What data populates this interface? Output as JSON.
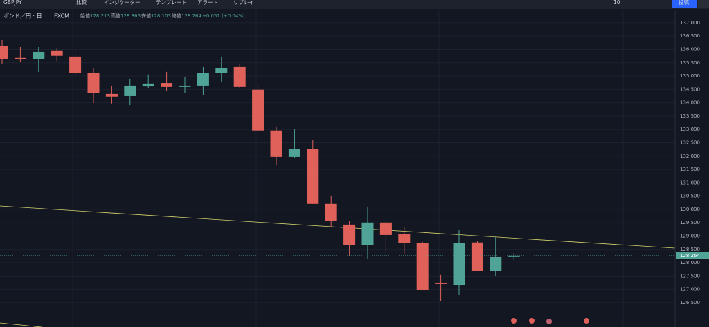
{
  "toolbar": {
    "symbol": "GBPJPY",
    "items": [
      "比較",
      "インジケーター",
      "テンプレート",
      "アラート",
      "リプレイ"
    ],
    "layout_count": "10",
    "publish": "投稿"
  },
  "legend": {
    "name": "ポンド／円 · 日",
    "source": "FXCM",
    "open_label": "始値",
    "high_label": "高値",
    "low_label": "安値",
    "close_label": "終値",
    "change": "+0.051 (+0.04%)"
  },
  "chart_data": {
    "type": "candlestick",
    "up_color": "#4fa397",
    "down_color": "#e0605a",
    "grid": true,
    "open": [
      136.12,
      135.68,
      135.63,
      135.94,
      135.73,
      135.11,
      134.33,
      134.25,
      134.61,
      134.74,
      134.59,
      134.64,
      135.11,
      135.34,
      134.49,
      132.96,
      131.97,
      132.26,
      130.21,
      129.43,
      128.65,
      129.51,
      129.07,
      128.73,
      127.25,
      127.17,
      128.76,
      127.69,
      128.213
    ],
    "high": [
      136.35,
      136.09,
      136.09,
      136.07,
      135.83,
      135.31,
      134.64,
      134.9,
      135.06,
      135.16,
      134.95,
      135.34,
      135.73,
      135.44,
      134.69,
      133.11,
      133.03,
      132.59,
      130.52,
      129.56,
      130.08,
      129.56,
      129.35,
      128.78,
      127.54,
      129.22,
      128.81,
      128.96,
      128.366
    ],
    "low": [
      135.47,
      135.52,
      135.16,
      135.57,
      135.06,
      133.99,
      133.97,
      133.91,
      134.56,
      134.46,
      134.36,
      134.3,
      134.77,
      134.54,
      132.96,
      131.66,
      131.92,
      130.21,
      129.33,
      128.24,
      128.13,
      128.26,
      128.34,
      126.99,
      126.55,
      126.81,
      127.69,
      127.51,
      128.103
    ],
    "close": [
      135.65,
      135.63,
      135.91,
      135.76,
      135.11,
      134.36,
      134.23,
      134.64,
      134.72,
      134.59,
      134.64,
      135.11,
      135.31,
      134.59,
      132.96,
      131.97,
      132.26,
      130.21,
      129.58,
      128.65,
      129.51,
      129.04,
      128.73,
      126.99,
      127.2,
      128.73,
      127.69,
      128.21,
      128.264
    ],
    "ylim": [
      125.59,
      137.49
    ],
    "yticks": [
      {
        "value": 126.5,
        "label": "126.500"
      },
      {
        "value": 127,
        "label": "127.000"
      },
      {
        "value": 127.5,
        "label": "127.500"
      },
      {
        "value": 128,
        "label": "128.000"
      },
      {
        "value": 128.5,
        "label": "128.500"
      },
      {
        "value": 129,
        "label": "129.000"
      },
      {
        "value": 129.5,
        "label": "129.500"
      },
      {
        "value": 130,
        "label": "130.000"
      },
      {
        "value": 130.5,
        "label": "130.500"
      },
      {
        "value": 131,
        "label": "131.000"
      },
      {
        "value": 131.5,
        "label": "131.500"
      },
      {
        "value": 132,
        "label": "132.000"
      },
      {
        "value": 132.5,
        "label": "132.500"
      },
      {
        "value": 133,
        "label": "133.000"
      },
      {
        "value": 133.5,
        "label": "133.500"
      },
      {
        "value": 134,
        "label": "134.000"
      },
      {
        "value": 134.5,
        "label": "134.500"
      },
      {
        "value": 135,
        "label": "135.000"
      },
      {
        "value": 135.5,
        "label": "135.500"
      },
      {
        "value": 136,
        "label": "136.000"
      },
      {
        "value": 136.5,
        "label": "136.500"
      },
      {
        "value": 137,
        "label": "137.000"
      }
    ]
  }
}
